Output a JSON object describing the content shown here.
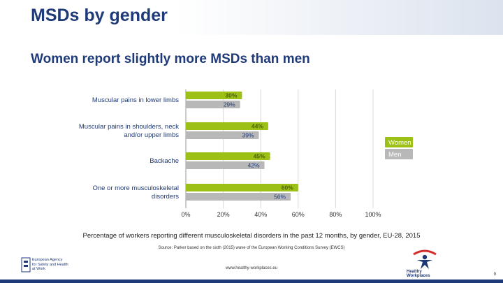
{
  "title": "MSDs by gender",
  "subtitle": "Women report slightly more MSDs than men",
  "chart_data": {
    "type": "bar",
    "orientation": "horizontal",
    "categories": [
      [
        "Muscular pains in lower limbs"
      ],
      [
        "Muscular pains in shoulders, neck",
        "and/or upper limbs"
      ],
      [
        "Backache"
      ],
      [
        "One or more musculoskeletal",
        "disorders"
      ]
    ],
    "series": [
      {
        "name": "Women",
        "values": [
          30,
          44,
          45,
          60
        ],
        "labels": [
          "30%",
          "44%",
          "45%",
          "60%"
        ],
        "color": "#9cc015"
      },
      {
        "name": "Men",
        "values": [
          29,
          39,
          42,
          56
        ],
        "labels": [
          "29%",
          "39%",
          "42%",
          "56%"
        ],
        "color": "#b8b8b8"
      }
    ],
    "xlim": [
      0,
      100
    ],
    "xticks": [
      "0%",
      "20%",
      "40%",
      "60%",
      "80%",
      "100%"
    ],
    "grid": true,
    "legend_position": "right"
  },
  "caption": "Percentage of workers reporting different musculoskeletal disorders in the past 12 months, by gender, EU-28, 2015",
  "source": "Source: Parker based on the sixth (2015) wave of the European Working Conditions Survey (EWCS)",
  "footer": {
    "url": "www.healthy-workplaces.eu",
    "agency_lines": [
      "European Agency",
      "for Safety and Health",
      "at Work"
    ],
    "campaign": "Healthy Workplaces",
    "page": "9"
  },
  "colors": {
    "title": "#1f3a78",
    "women": "#9cc015",
    "men": "#b8b8b8"
  }
}
